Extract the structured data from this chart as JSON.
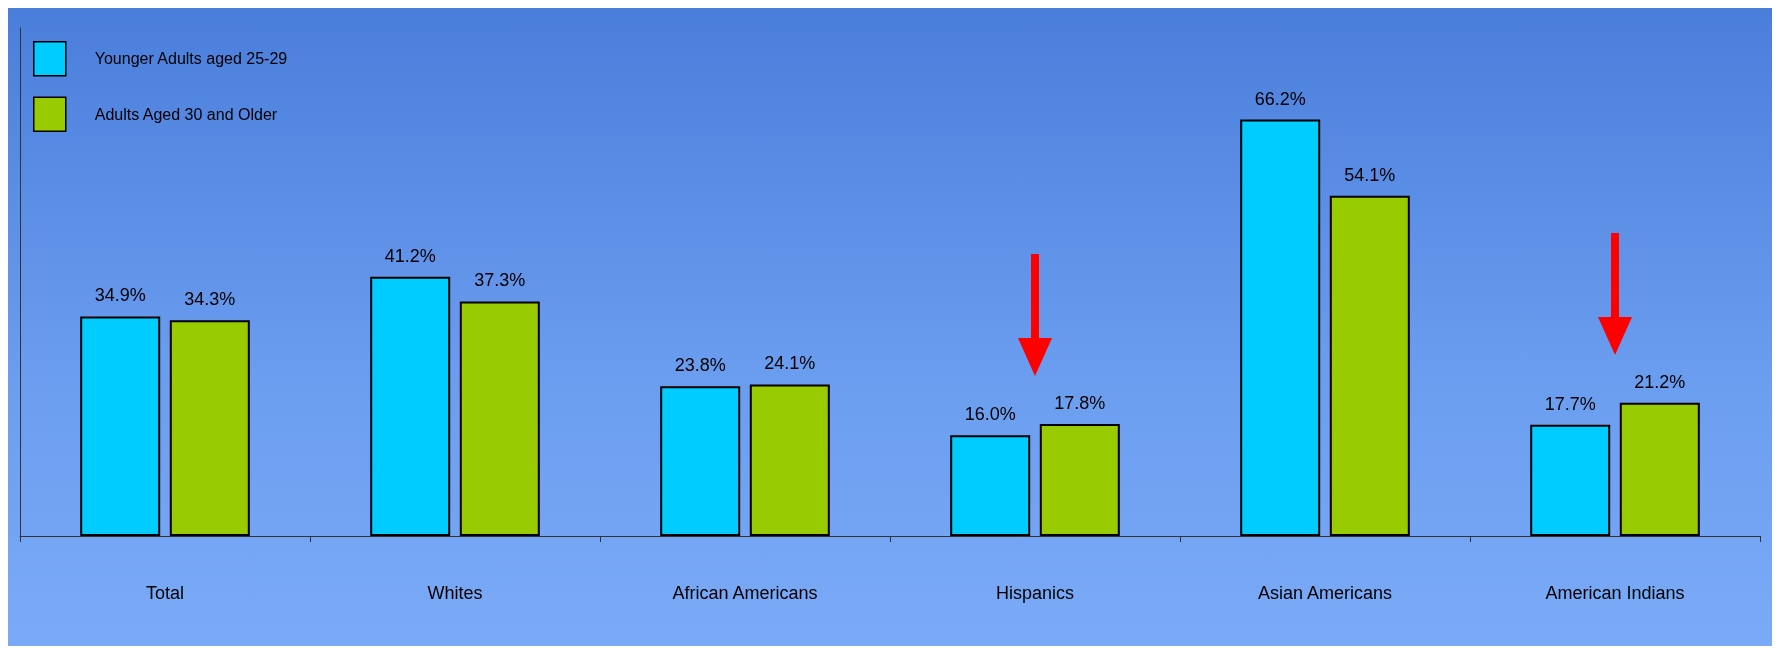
{
  "chart_data": {
    "type": "bar",
    "categories": [
      "Total",
      "Whites",
      "African Americans",
      "Hispanics",
      "Asian Americans",
      "American Indians"
    ],
    "series": [
      {
        "name": "Younger Adults aged 25-29",
        "color": "#00ccff",
        "values": [
          34.9,
          41.2,
          23.8,
          16.0,
          66.2,
          17.7
        ],
        "value_labels": [
          "34.9%",
          "41.2%",
          "23.8%",
          "16.0%",
          "66.2%",
          "17.7%"
        ]
      },
      {
        "name": "Adults Aged 30 and Older",
        "color": "#99cc00",
        "values": [
          34.3,
          37.3,
          24.1,
          17.8,
          54.1,
          21.2
        ],
        "value_labels": [
          "34.3%",
          "37.3%",
          "24.1%",
          "17.8%",
          "54.1%",
          "21.2%"
        ]
      }
    ],
    "relative": false,
    "legend": "top left",
    "grid": false
  }
}
